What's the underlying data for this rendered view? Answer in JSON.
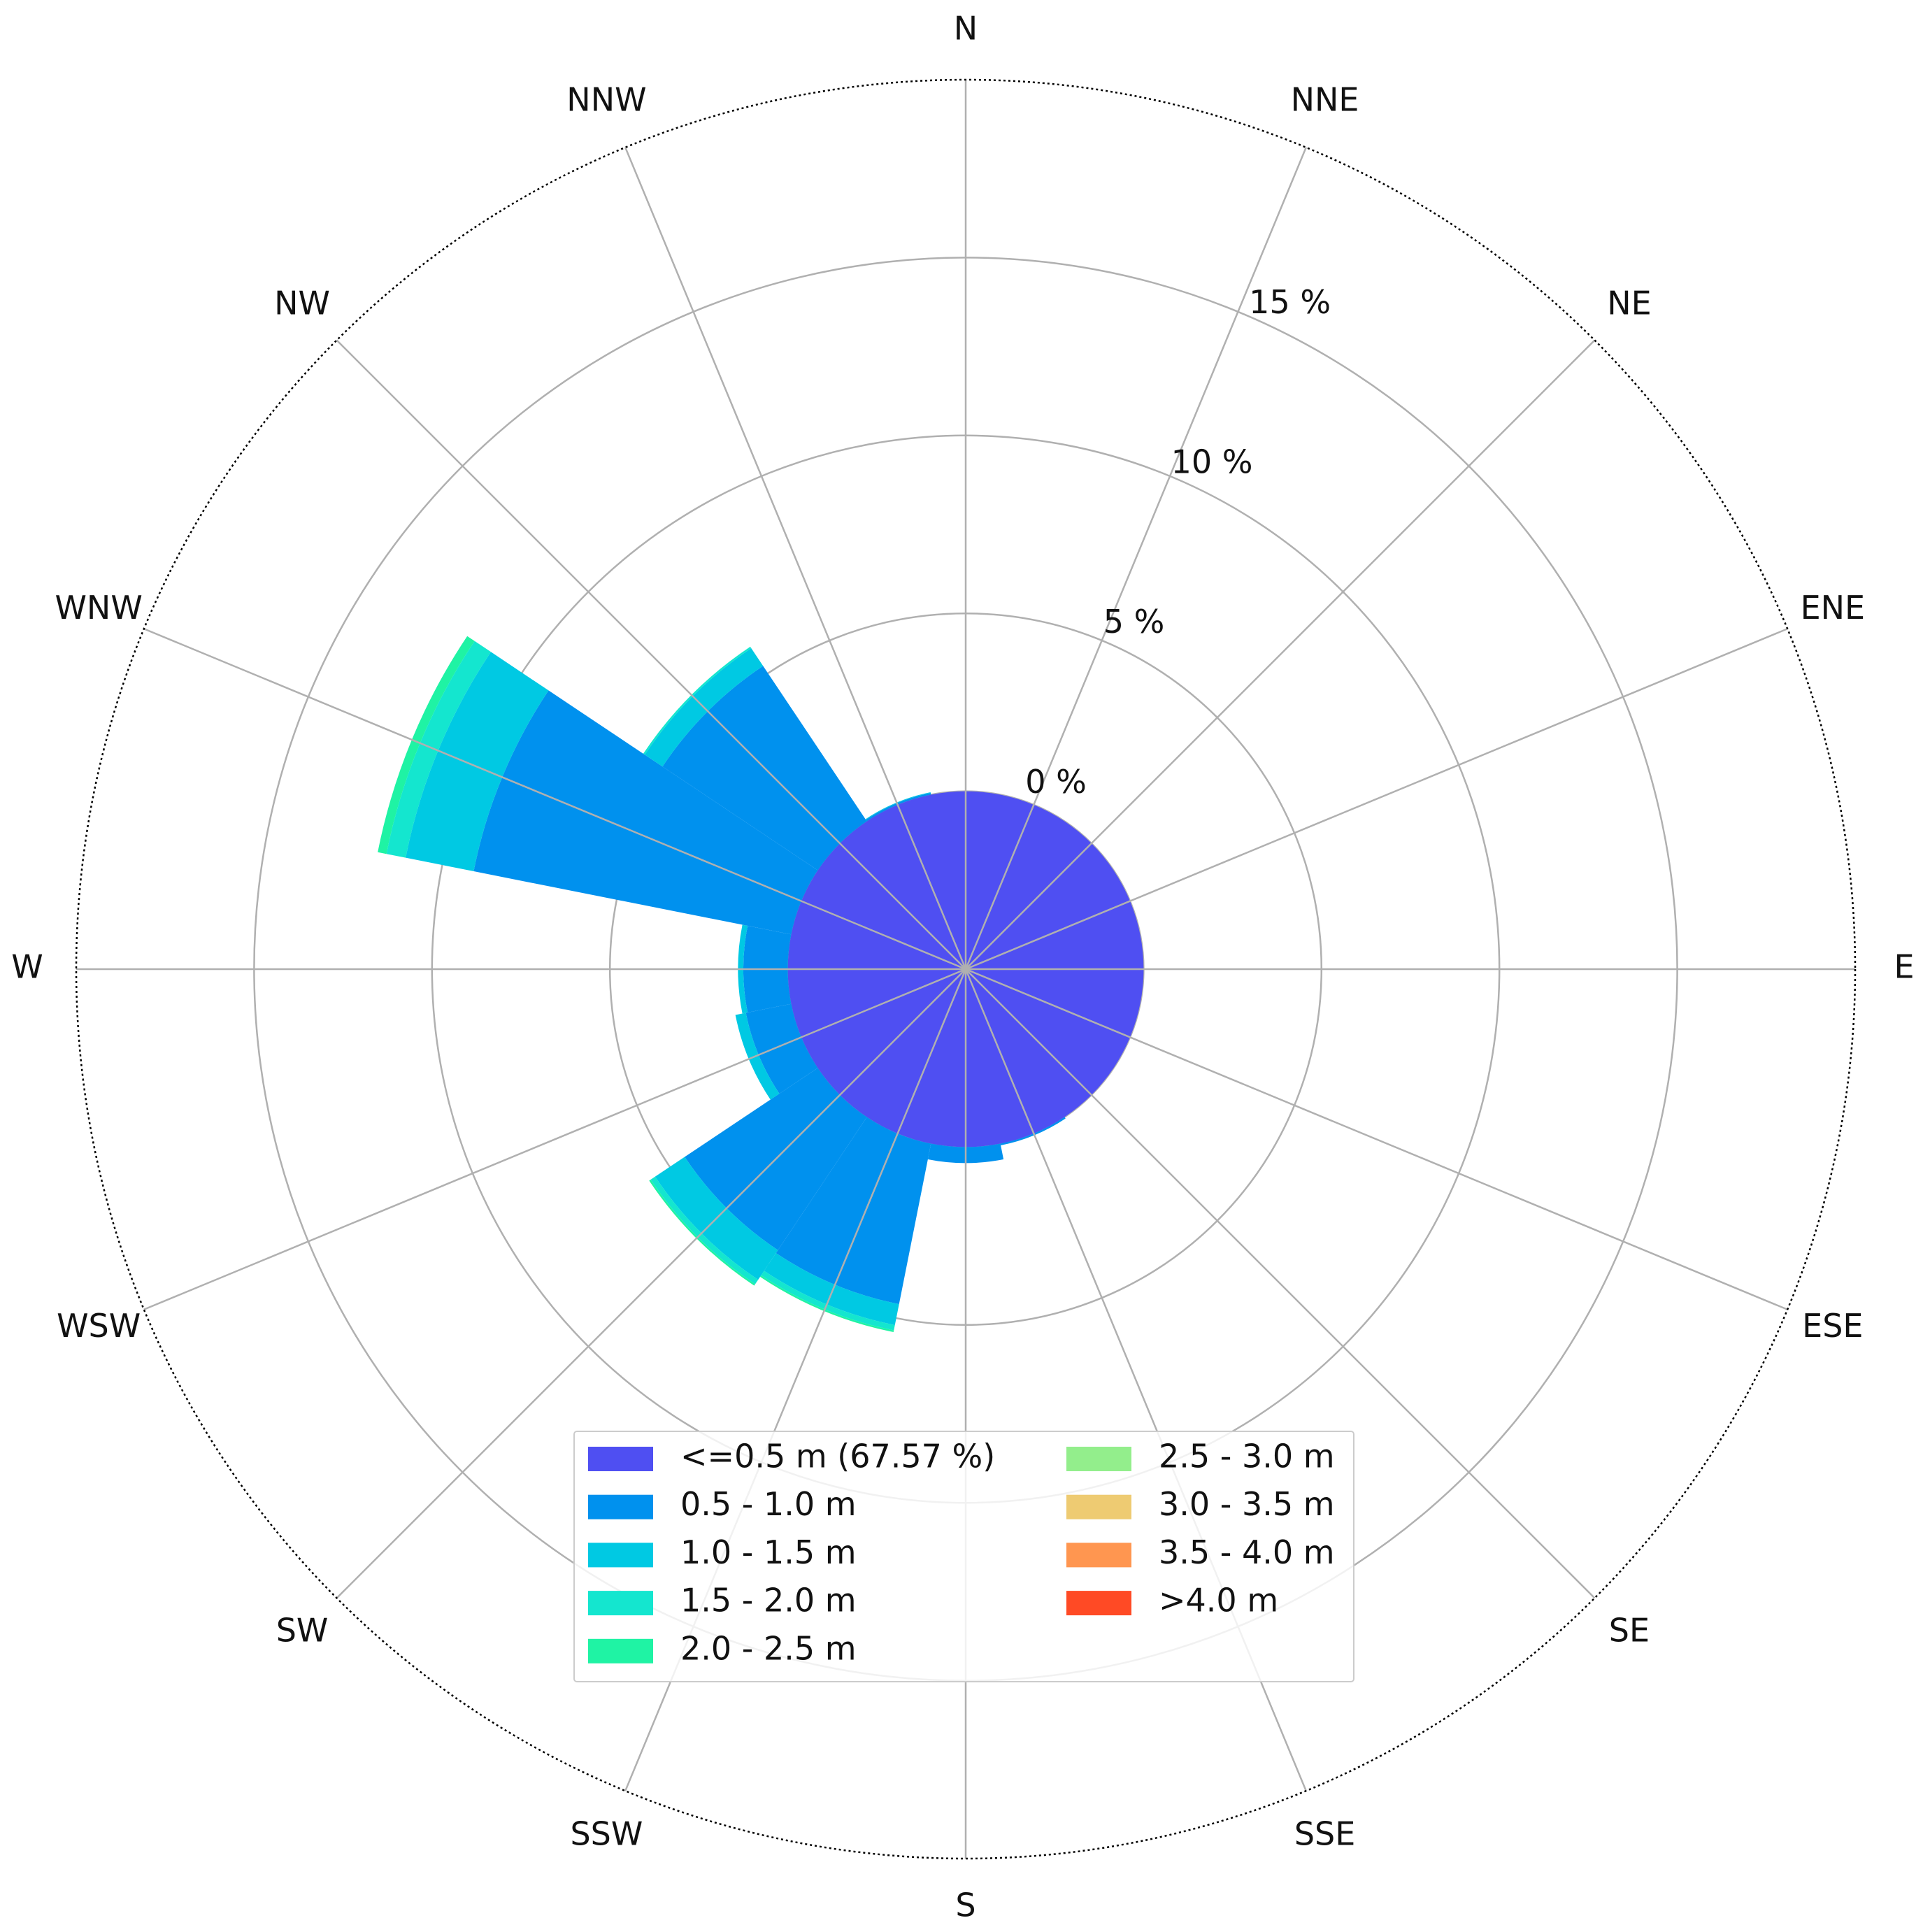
{
  "chart_data": {
    "type": "windrose",
    "categories": [
      "N",
      "NNE",
      "NE",
      "ENE",
      "E",
      "ESE",
      "SE",
      "SSE",
      "S",
      "SSW",
      "SW",
      "WSW",
      "W",
      "WNW",
      "NW",
      "NNW"
    ],
    "calm": {
      "name": "<=0.5 m (67.57 %)",
      "color": "#4f4ff2"
    },
    "series": [
      {
        "name": "0.5 - 1.0 m",
        "color": "#0091ee",
        "values": [
          0,
          0,
          0,
          0,
          0,
          0,
          0,
          0.05,
          0.45,
          4.6,
          4.5,
          1.3,
          1.25,
          9.1,
          5.25,
          0.05
        ]
      },
      {
        "name": "1.0 - 1.5 m",
        "color": "#00c9e3",
        "values": [
          0,
          0,
          0,
          0,
          0,
          0,
          0,
          0,
          0,
          0.6,
          1.0,
          0.3,
          0.15,
          1.95,
          0.6,
          0.02
        ]
      },
      {
        "name": "1.5 - 2.0 m",
        "color": "#14e6cf",
        "values": [
          0,
          0,
          0,
          0,
          0,
          0,
          0,
          0,
          0,
          0.15,
          0.15,
          0,
          0,
          0.55,
          0.05,
          0
        ]
      },
      {
        "name": "2.0 - 2.5 m",
        "color": "#1ff3a4",
        "values": [
          0,
          0,
          0,
          0,
          0,
          0,
          0,
          0,
          0,
          0.05,
          0.05,
          0,
          0,
          0.25,
          0,
          0
        ]
      },
      {
        "name": "2.5 - 3.0 m",
        "color": "#93ee8c",
        "values": [
          0,
          0,
          0,
          0,
          0,
          0,
          0,
          0,
          0,
          0,
          0,
          0,
          0,
          0,
          0,
          0
        ]
      },
      {
        "name": "3.0 - 3.5 m",
        "color": "#eecb72",
        "values": [
          0,
          0,
          0,
          0,
          0,
          0,
          0,
          0,
          0,
          0,
          0,
          0,
          0,
          0,
          0,
          0
        ]
      },
      {
        "name": "3.5 - 4.0 m",
        "color": "#ff9650",
        "values": [
          0,
          0,
          0,
          0,
          0,
          0,
          0,
          0,
          0,
          0,
          0,
          0,
          0,
          0,
          0,
          0
        ]
      },
      {
        "name": ">4.0 m",
        "color": "#ff4a25",
        "values": [
          0,
          0,
          0,
          0,
          0,
          0,
          0,
          0,
          0,
          0,
          0,
          0,
          0,
          0,
          0,
          0
        ]
      }
    ],
    "ylim": [
      -5,
      20
    ],
    "yticks": [
      {
        "value": 0,
        "label": "0 %"
      },
      {
        "value": 5,
        "label": "5 %"
      },
      {
        "value": 10,
        "label": "10 %"
      },
      {
        "value": 15,
        "label": "15 %"
      }
    ],
    "grid": true
  }
}
